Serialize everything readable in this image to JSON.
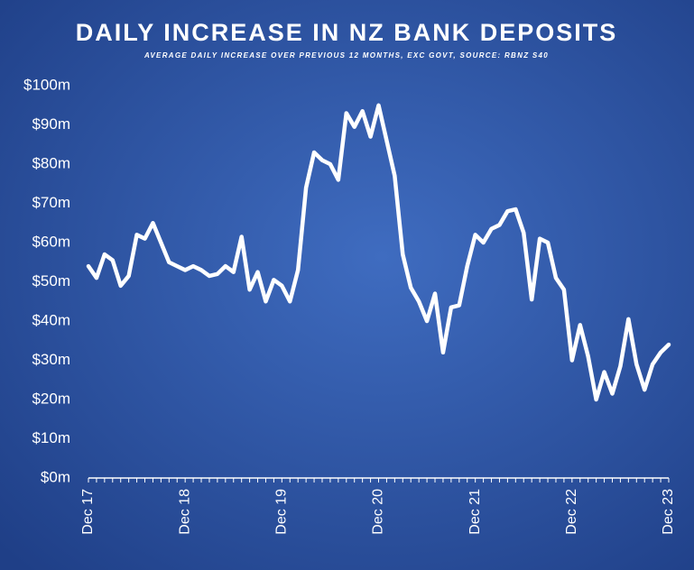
{
  "chart_data": {
    "type": "line",
    "title": "DAILY INCREASE IN NZ BANK DEPOSITS",
    "subtitle": "AVERAGE DAILY INCREASE OVER PREVIOUS 12 MONTHS, EXC GOVT, SOURCE: RBNZ S40",
    "categories": [
      "Dec 17",
      null,
      null,
      null,
      null,
      null,
      null,
      null,
      null,
      null,
      null,
      null,
      "Dec 18",
      null,
      null,
      null,
      null,
      null,
      null,
      null,
      null,
      null,
      null,
      null,
      "Dec 19",
      null,
      null,
      null,
      null,
      null,
      null,
      null,
      null,
      null,
      null,
      null,
      "Dec 20",
      null,
      null,
      null,
      null,
      null,
      null,
      null,
      null,
      null,
      null,
      null,
      "Dec 21",
      null,
      null,
      null,
      null,
      null,
      null,
      null,
      null,
      null,
      null,
      null,
      "Dec 22",
      null,
      null,
      null,
      null,
      null,
      null,
      null,
      null,
      null,
      null,
      null,
      "Dec 23"
    ],
    "series": [
      {
        "color": "#ffffff",
        "values": [
          54,
          51,
          57,
          55.5,
          49,
          51.5,
          62,
          61,
          65,
          60,
          55,
          54,
          53,
          54,
          53,
          51.5,
          52,
          54,
          52.5,
          61.5,
          48,
          52.5,
          45,
          50.5,
          49,
          45,
          53,
          74,
          83,
          81,
          80,
          76,
          93,
          89.5,
          93.5,
          87,
          95,
          86,
          77,
          57,
          48.5,
          45,
          40,
          47,
          32,
          43.5,
          44,
          54,
          62,
          60,
          63.5,
          64.5,
          68,
          68.5,
          62.5,
          45.5,
          61,
          60,
          51,
          48,
          30,
          39,
          31,
          20,
          27,
          21.5,
          28.5,
          40.5,
          29,
          22.5,
          29,
          32,
          34
        ]
      }
    ],
    "ylim": [
      0,
      100
    ],
    "yticks": [
      {
        "value": 0,
        "label": "$0m"
      },
      {
        "value": 10,
        "label": "$10m"
      },
      {
        "value": 20,
        "label": "$20m"
      },
      {
        "value": 30,
        "label": "$30m"
      },
      {
        "value": 40,
        "label": "$40m"
      },
      {
        "value": 50,
        "label": "$50m"
      },
      {
        "value": 60,
        "label": "$60m"
      },
      {
        "value": 70,
        "label": "$70m"
      },
      {
        "value": 80,
        "label": "$80m"
      },
      {
        "value": 90,
        "label": "$90m"
      },
      {
        "value": 100,
        "label": "$100m"
      }
    ]
  }
}
